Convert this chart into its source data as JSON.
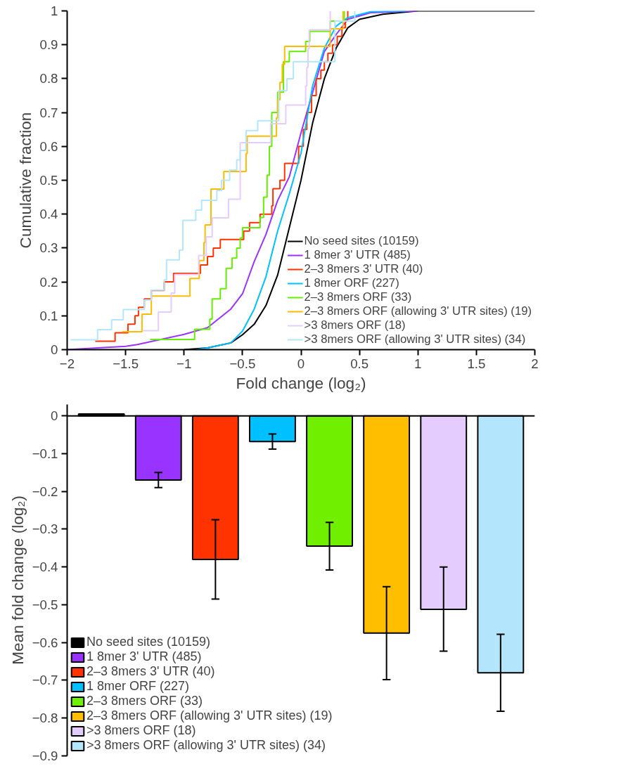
{
  "chart_data": [
    {
      "type": "step",
      "xlabel": "Fold change (log₂)",
      "ylabel": "Cumulative fraction",
      "xlim": [
        -2,
        2
      ],
      "ylim": [
        0,
        1
      ],
      "xticks": [
        {
          "value": -2,
          "label": "−2"
        },
        {
          "value": -1.5,
          "label": "−1.5"
        },
        {
          "value": -1,
          "label": "−1"
        },
        {
          "value": -0.5,
          "label": "−0.5"
        },
        0,
        0.5,
        1,
        1.5,
        2
      ],
      "yticks": [
        0,
        0.1,
        0.2,
        0.3,
        0.4,
        0.5,
        0.6,
        0.7,
        0.8,
        0.9,
        1
      ],
      "grid": false,
      "legend": "bottom right",
      "series": [
        {
          "name": "No seed sites (10159)",
          "type": "line",
          "color": "#000000",
          "x": [
            -1,
            -0.8,
            -0.6,
            -0.5,
            -0.4,
            -0.3,
            -0.2,
            -0.1,
            0,
            0.1,
            0.2,
            0.3,
            0.4,
            0.5,
            0.7,
            1,
            2
          ],
          "values": [
            0,
            0.005,
            0.02,
            0.044,
            0.075,
            0.13,
            0.22,
            0.36,
            0.5,
            0.67,
            0.8,
            0.89,
            0.95,
            0.975,
            0.99,
            1,
            1
          ]
        },
        {
          "name": "1 8mer 3' UTR (485)",
          "type": "line",
          "color": "#9933ff",
          "x": [
            -2,
            -1.5,
            -1.4,
            -1,
            -0.8,
            -0.6,
            -0.5,
            -0.4,
            -0.3,
            -0.2,
            -0.1,
            0,
            0.1,
            0.2,
            0.3,
            0.4,
            0.6,
            1
          ],
          "values": [
            0,
            0.01,
            0.015,
            0.045,
            0.065,
            0.12,
            0.165,
            0.26,
            0.34,
            0.44,
            0.51,
            0.64,
            0.76,
            0.88,
            0.93,
            0.975,
            0.995,
            1
          ]
        },
        {
          "name": "2–3 8mers 3' UTR (40)",
          "color": "#ff3300",
          "x": [
            -1.76,
            -1.59,
            -1.48,
            -1.42,
            -1.39,
            -1.34,
            -1.28,
            -1.17,
            -1.09,
            -0.86,
            -0.8,
            -0.75,
            -0.69,
            -0.49,
            -0.44,
            -0.35,
            -0.25,
            -0.24,
            -0.18,
            -0.14,
            -0.02,
            0.02,
            0.05,
            0.09,
            0.13,
            0.17,
            0.2,
            0.23,
            0.27,
            0.31,
            0.35,
            0.38,
            0.4
          ],
          "values": [
            0.025,
            0.05,
            0.075,
            0.1,
            0.125,
            0.15,
            0.175,
            0.2,
            0.225,
            0.25,
            0.275,
            0.3,
            0.325,
            0.35,
            0.375,
            0.4,
            0.425,
            0.475,
            0.5,
            0.55,
            0.6,
            0.65,
            0.7,
            0.75,
            0.8,
            0.825,
            0.85,
            0.875,
            0.9,
            0.925,
            0.95,
            0.975,
            1
          ]
        },
        {
          "name": "1 8mer ORF (227)",
          "type": "line",
          "color": "#00c0ff",
          "x": [
            -0.9,
            -0.8,
            -0.6,
            -0.5,
            -0.4,
            -0.3,
            -0.2,
            -0.1,
            0,
            0.1,
            0.2,
            0.3,
            0.4,
            0.6,
            0.9
          ],
          "values": [
            0,
            0.005,
            0.02,
            0.055,
            0.12,
            0.215,
            0.35,
            0.46,
            0.58,
            0.78,
            0.89,
            0.955,
            0.98,
            0.998,
            1
          ]
        },
        {
          "name": "2–3 8mers ORF (33)",
          "color": "#66ee00",
          "x": [
            -1.29,
            -0.91,
            -0.78,
            -0.76,
            -0.69,
            -0.64,
            -0.59,
            -0.55,
            -0.52,
            -0.5,
            -0.35,
            -0.32,
            -0.29,
            -0.27,
            -0.25,
            -0.2,
            -0.15,
            -0.1,
            0.04,
            0.075,
            0.25,
            0.37
          ],
          "values": [
            0.03,
            0.06,
            0.09,
            0.15,
            0.18,
            0.24,
            0.27,
            0.3,
            0.33,
            0.36,
            0.39,
            0.45,
            0.515,
            0.6,
            0.7,
            0.76,
            0.85,
            0.88,
            0.91,
            0.94,
            0.97,
            1
          ]
        },
        {
          "name": "2–3 8mers ORF (allowing 3' UTR sites) (19)",
          "color": "#ffbb00",
          "x": [
            -1.53,
            -1.36,
            -1.28,
            -0.95,
            -0.87,
            -0.83,
            -0.82,
            -0.77,
            -0.66,
            -0.47,
            -0.46,
            -0.21,
            -0.2,
            -0.18,
            -0.16,
            -0.14,
            0.25,
            0.36
          ],
          "values": [
            0.053,
            0.105,
            0.158,
            0.21,
            0.263,
            0.316,
            0.368,
            0.474,
            0.526,
            0.579,
            0.63,
            0.684,
            0.737,
            0.789,
            0.842,
            0.895,
            0.947,
            1
          ]
        },
        {
          "name": ">3 8mers ORF (18)",
          "color": "#e5ccff",
          "x": [
            -1.35,
            -1.22,
            -1.11,
            -1.08,
            -0.875,
            -0.81,
            -0.76,
            -0.62,
            -0.52,
            -0.26,
            -0.13,
            0.04,
            0.05,
            0.06,
            0.07,
            0.25
          ],
          "values": [
            0.056,
            0.111,
            0.167,
            0.222,
            0.278,
            0.333,
            0.389,
            0.444,
            0.611,
            0.667,
            0.722,
            0.778,
            0.833,
            0.889,
            0.944,
            1
          ]
        },
        {
          "name": ">3 8mers ORF (allowing 3' UTR sites) (34)",
          "color": "#b3e5fc",
          "x": [
            -1.97,
            -1.74,
            -1.62,
            -1.52,
            -1.34,
            -1.28,
            -1.17,
            -1.15,
            -1.04,
            -1.01,
            -0.9,
            -0.85,
            -0.72,
            -0.68,
            -0.61,
            -0.55,
            -0.52,
            -0.47,
            -0.37,
            -0.19,
            -0.12,
            -0.065,
            0.29,
            0.46
          ],
          "values": [
            0.029,
            0.059,
            0.088,
            0.118,
            0.147,
            0.176,
            0.206,
            0.265,
            0.294,
            0.382,
            0.412,
            0.441,
            0.47,
            0.5,
            0.53,
            0.56,
            0.588,
            0.647,
            0.676,
            0.765,
            0.8,
            0.85,
            0.97,
            1
          ]
        }
      ]
    },
    {
      "type": "bar",
      "ylabel": "Mean fold change (log₂)",
      "categories": [
        null,
        null,
        null,
        null,
        null,
        null,
        null,
        null
      ],
      "ylim": [
        -0.9,
        0.03
      ],
      "yticks": [
        0,
        {
          "value": -0.1,
          "label": "−0.1"
        },
        {
          "value": -0.2,
          "label": "−0.2"
        },
        {
          "value": -0.3,
          "label": "−0.3"
        },
        {
          "value": -0.4,
          "label": "−0.4"
        },
        {
          "value": -0.5,
          "label": "−0.5"
        },
        {
          "value": -0.6,
          "label": "−0.6"
        },
        {
          "value": -0.7,
          "label": "−0.7"
        },
        {
          "value": -0.8,
          "label": "−0.8"
        },
        {
          "value": -0.9,
          "label": "−0.9"
        }
      ],
      "tick_labels": "y",
      "grid": false,
      "legend": "bottom left",
      "ref_lines": [
        {
          "axis": "y",
          "value": 0,
          "color": "#000000"
        }
      ],
      "series": [
        {
          "name": "No seed sites (10159)",
          "color": "#000000",
          "values": [
            0.005,
            null,
            null,
            null,
            null,
            null,
            null,
            null
          ],
          "errors": [
            null,
            null,
            null,
            null,
            null,
            null,
            null,
            null
          ]
        },
        {
          "name": "1 8mer 3' UTR (485)",
          "color": "#9933ff",
          "values": [
            null,
            -0.17,
            null,
            null,
            null,
            null,
            null,
            null
          ],
          "errors": [
            null,
            [
              -0.19,
              -0.15
            ],
            null,
            null,
            null,
            null,
            null,
            null
          ]
        },
        {
          "name": "2–3 8mers 3' UTR (40)",
          "color": "#ff3300",
          "values": [
            null,
            null,
            -0.38,
            null,
            null,
            null,
            null,
            null
          ],
          "errors": [
            null,
            null,
            [
              -0.485,
              -0.275
            ],
            null,
            null,
            null,
            null,
            null
          ]
        },
        {
          "name": "1 8mer ORF (227)",
          "color": "#00c0ff",
          "values": [
            null,
            null,
            null,
            -0.068,
            null,
            null,
            null,
            null
          ],
          "errors": [
            null,
            null,
            null,
            [
              -0.088,
              -0.048
            ],
            null,
            null,
            null,
            null
          ]
        },
        {
          "name": "2–3 8mers ORF (33)",
          "color": "#70f000",
          "values": [
            null,
            null,
            null,
            null,
            -0.345,
            null,
            null,
            null
          ],
          "errors": [
            null,
            null,
            null,
            null,
            [
              -0.408,
              -0.282
            ],
            null,
            null,
            null
          ]
        },
        {
          "name": "2–3 8mers ORF (allowing 3' UTR sites) (19)",
          "color": "#ffbf00",
          "values": [
            null,
            null,
            null,
            null,
            null,
            -0.575,
            null,
            null
          ],
          "errors": [
            null,
            null,
            null,
            null,
            null,
            [
              -0.698,
              -0.452
            ],
            null,
            null
          ]
        },
        {
          "name": ">3 8mers ORF (18)",
          "color": "#e5ccff",
          "values": [
            null,
            null,
            null,
            null,
            null,
            null,
            -0.512,
            null
          ],
          "errors": [
            null,
            null,
            null,
            null,
            null,
            null,
            [
              -0.623,
              -0.4
            ],
            null
          ]
        },
        {
          "name": ">3 8mers ORF (allowing 3' UTR sites) (34)",
          "color": "#b3e5fc",
          "values": [
            null,
            null,
            null,
            null,
            null,
            null,
            null,
            -0.68
          ],
          "errors": [
            null,
            null,
            null,
            null,
            null,
            null,
            null,
            [
              -0.782,
              -0.578
            ]
          ]
        }
      ]
    }
  ]
}
